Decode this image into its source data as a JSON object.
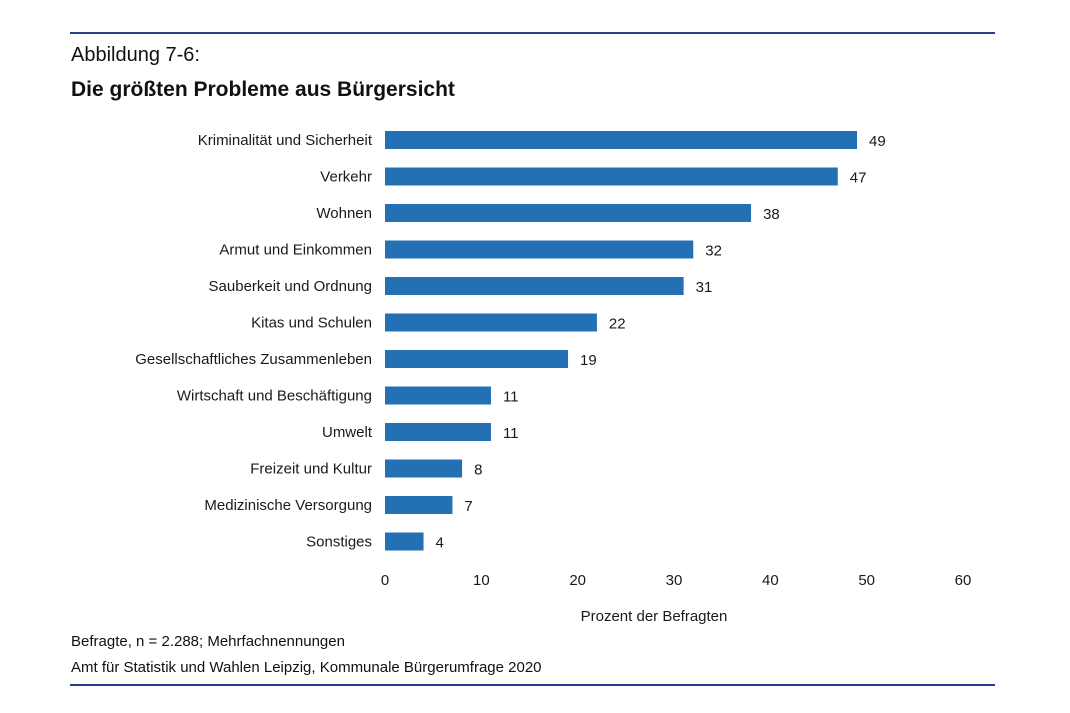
{
  "figure": {
    "label": "Abbildung 7-6:",
    "title": "Die größten Probleme aus Bürgersicht",
    "note": "Befragte, n = 2.288; Mehrfachnennungen",
    "source": "Amt für Statistik und Wahlen Leipzig, Kommunale Bürgerumfrage 2020",
    "rule_color": "#27408b"
  },
  "chart_data": {
    "type": "bar",
    "orientation": "horizontal",
    "title": "Die größten Probleme aus Bürgersicht",
    "xlabel": "Prozent der Befragten",
    "ylabel": "",
    "xlim": [
      0,
      60
    ],
    "xticks": [
      0,
      10,
      20,
      30,
      40,
      50,
      60
    ],
    "grid": false,
    "legend": "none",
    "bar_color": "#2470b5",
    "categories": [
      "Kriminalität und Sicherheit",
      "Verkehr",
      "Wohnen",
      "Armut und Einkommen",
      "Sauberkeit und Ordnung",
      "Kitas und Schulen",
      "Gesellschaftliches Zusammenleben",
      "Wirtschaft und Beschäftigung",
      "Umwelt",
      "Freizeit und Kultur",
      "Medizinische Versorgung",
      "Sonstiges"
    ],
    "values": [
      49,
      47,
      38,
      32,
      31,
      22,
      19,
      11,
      11,
      8,
      7,
      4
    ]
  }
}
